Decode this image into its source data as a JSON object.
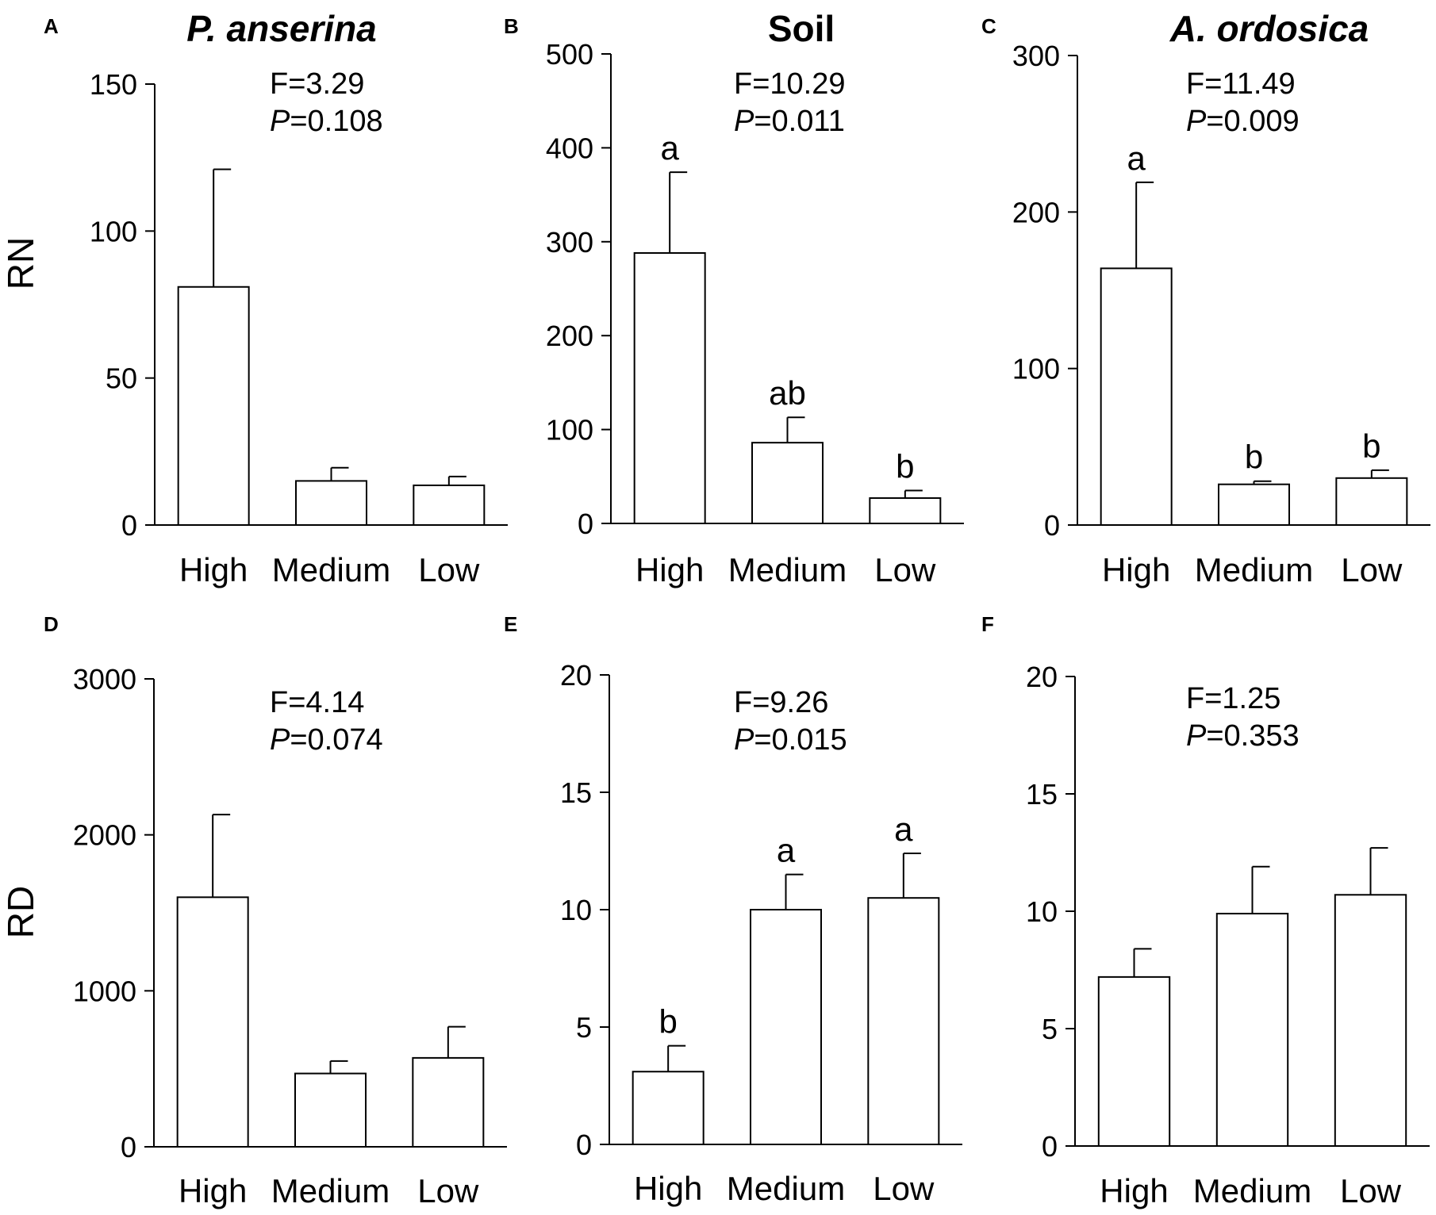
{
  "row_labels": [
    "RN",
    "RD"
  ],
  "chart_data": [
    {
      "type": "bar",
      "panel": "A",
      "title": "P. anserina",
      "title_italic": true,
      "ylabel": "RN",
      "categories": [
        "High",
        "Medium",
        "Low"
      ],
      "values": [
        81,
        15,
        13.5
      ],
      "errors": [
        40,
        4.5,
        3
      ],
      "significance": [
        "",
        "",
        ""
      ],
      "ylim": [
        0,
        150
      ],
      "yticks": [
        0,
        50,
        100,
        150
      ],
      "stats": {
        "F": "F=3.29",
        "P": "P",
        "P_value": "=0.108"
      }
    },
    {
      "type": "bar",
      "panel": "B",
      "title": "Soil",
      "title_italic": false,
      "ylabel": "",
      "categories": [
        "High",
        "Medium",
        "Low"
      ],
      "values": [
        288,
        86,
        27
      ],
      "errors": [
        86,
        27,
        8
      ],
      "significance": [
        "a",
        "ab",
        "b"
      ],
      "ylim": [
        0,
        500
      ],
      "yticks": [
        0,
        100,
        200,
        300,
        400,
        500
      ],
      "stats": {
        "F": "F=10.29",
        "P": "P",
        "P_value": "=0.011"
      }
    },
    {
      "type": "bar",
      "panel": "C",
      "title": "A. ordosica",
      "title_italic": true,
      "ylabel": "",
      "categories": [
        "High",
        "Medium",
        "Low"
      ],
      "values": [
        164,
        26,
        30
      ],
      "errors": [
        55,
        2,
        5
      ],
      "significance": [
        "a",
        "b",
        "b"
      ],
      "ylim": [
        0,
        300
      ],
      "yticks": [
        0,
        100,
        200,
        300
      ],
      "stats": {
        "F": "F=11.49",
        "P": "P",
        "P_value": "=0.009"
      }
    },
    {
      "type": "bar",
      "panel": "D",
      "title": "",
      "title_italic": false,
      "ylabel": "RD",
      "categories": [
        "High",
        "Medium",
        "Low"
      ],
      "values": [
        1600,
        470,
        570
      ],
      "errors": [
        530,
        80,
        200
      ],
      "significance": [
        "",
        "",
        ""
      ],
      "ylim": [
        0,
        3000
      ],
      "yticks": [
        0,
        1000,
        2000,
        3000
      ],
      "stats": {
        "F": "F=4.14",
        "P": "P",
        "P_value": "=0.074"
      }
    },
    {
      "type": "bar",
      "panel": "E",
      "title": "",
      "title_italic": false,
      "ylabel": "",
      "categories": [
        "High",
        "Medium",
        "Low"
      ],
      "values": [
        3.1,
        10,
        10.5
      ],
      "errors": [
        1.1,
        1.5,
        1.9
      ],
      "significance": [
        "b",
        "a",
        "a"
      ],
      "ylim": [
        0,
        20
      ],
      "yticks": [
        0,
        5,
        10,
        15,
        20
      ],
      "stats": {
        "F": "F=9.26",
        "P": "P",
        "P_value": "=0.015"
      }
    },
    {
      "type": "bar",
      "panel": "F",
      "title": "",
      "title_italic": false,
      "ylabel": "",
      "categories": [
        "High",
        "Medium",
        "Low"
      ],
      "values": [
        7.2,
        9.9,
        10.7
      ],
      "errors": [
        1.2,
        2,
        2
      ],
      "significance": [
        "",
        "",
        ""
      ],
      "ylim": [
        0,
        20
      ],
      "yticks": [
        0,
        5,
        10,
        15,
        20
      ],
      "stats": {
        "F": "F=1.25",
        "P": "P",
        "P_value": "=0.353"
      }
    }
  ]
}
